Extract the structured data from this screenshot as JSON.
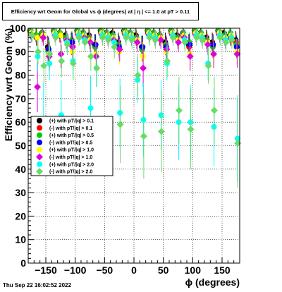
{
  "title": "Efficiency wrt Geom for Global vs ϕ (degrees) at |  η | <= 1.0 at pT > 0.11",
  "timestamp": "Thu Sep 22 16:02:52 2022",
  "chart_data": {
    "type": "scatter",
    "xlabel": "ϕ (degrees)",
    "ylabel": "Efficiency wrt Geom (%)",
    "xlim": [
      -180,
      180
    ],
    "ylim": [
      0,
      100
    ],
    "grid": true,
    "legend_position": "left-middle",
    "x_ticks": [
      -150,
      -100,
      -50,
      0,
      50,
      100,
      150
    ],
    "x_tick_labels": [
      "−150",
      "−100",
      "−50",
      "0",
      "50",
      "100",
      "150"
    ],
    "y_ticks": [
      0,
      10,
      20,
      30,
      40,
      50,
      60,
      70,
      80,
      90,
      100
    ],
    "y_tick_labels": [
      "0",
      "10",
      "20",
      "30",
      "40",
      "50",
      "60",
      "70",
      "80",
      "90",
      "100"
    ],
    "series": [
      {
        "name": "(+) with pT/|q| > 0.1",
        "color": "#000000",
        "marker": "circle",
        "x": [
          -175,
          -165,
          -155,
          -145,
          -135,
          -125,
          -115,
          -105,
          -95,
          -85,
          -75,
          -65,
          -55,
          -45,
          -35,
          -25,
          -15,
          -5,
          5,
          15,
          25,
          35,
          45,
          55,
          65,
          75,
          85,
          95,
          105,
          115,
          125,
          135,
          145,
          155,
          165,
          175
        ],
        "y": [
          99,
          97,
          98,
          92,
          99,
          98,
          97,
          94,
          99,
          98,
          97,
          93,
          99,
          98,
          98,
          94,
          99,
          98,
          97,
          92,
          99,
          98,
          97,
          94,
          99,
          97,
          98,
          93,
          99,
          98,
          96,
          94,
          99,
          98,
          97,
          95
        ]
      },
      {
        "name": "(-) with pT/|q| > 0.1",
        "color": "#ff0000",
        "marker": "circle",
        "x": [
          -175,
          -165,
          -155,
          -145,
          -135,
          -125,
          -115,
          -105,
          -95,
          -85,
          -75,
          -65,
          -55,
          -45,
          -35,
          -25,
          -15,
          -5,
          5,
          15,
          25,
          35,
          45,
          55,
          65,
          75,
          85,
          95,
          105,
          115,
          125,
          135,
          145,
          155,
          165,
          175
        ],
        "y": [
          98,
          96,
          97,
          91,
          99,
          97,
          96,
          93,
          98,
          97,
          96,
          92,
          98,
          97,
          97,
          93,
          98,
          97,
          96,
          91,
          98,
          97,
          96,
          93,
          98,
          96,
          97,
          92,
          98,
          97,
          95,
          93,
          98,
          97,
          96,
          94
        ]
      },
      {
        "name": "(+) with pT/|q| > 0.5",
        "color": "#00cc00",
        "marker": "circle",
        "x": [
          -175,
          -165,
          -155,
          -145,
          -135,
          -125,
          -115,
          -105,
          -95,
          -85,
          -75,
          -65,
          -55,
          -45,
          -35,
          -25,
          -15,
          -5,
          5,
          15,
          25,
          35,
          45,
          55,
          65,
          75,
          85,
          95,
          105,
          115,
          125,
          135,
          145,
          155,
          165,
          175
        ],
        "y": [
          99,
          97,
          98,
          90,
          99,
          98,
          96,
          95,
          99,
          98,
          96,
          92,
          99,
          98,
          97,
          93,
          99,
          98,
          96,
          91,
          99,
          98,
          97,
          93,
          99,
          96,
          98,
          94,
          99,
          98,
          95,
          92,
          99,
          97,
          98,
          93
        ]
      },
      {
        "name": "(-) with pT/|q| > 0.5",
        "color": "#0000ff",
        "marker": "circle",
        "x": [
          -175,
          -165,
          -155,
          -145,
          -135,
          -125,
          -115,
          -105,
          -95,
          -85,
          -75,
          -65,
          -55,
          -45,
          -35,
          -25,
          -15,
          -5,
          5,
          15,
          25,
          35,
          45,
          55,
          65,
          75,
          85,
          95,
          105,
          115,
          125,
          135,
          145,
          155,
          165,
          175
        ],
        "y": [
          98,
          96,
          97,
          91,
          98,
          97,
          95,
          94,
          98,
          97,
          95,
          93,
          98,
          97,
          96,
          92,
          98,
          97,
          95,
          92,
          98,
          97,
          96,
          92,
          98,
          95,
          97,
          93,
          98,
          97,
          94,
          93,
          98,
          96,
          97,
          92
        ]
      },
      {
        "name": "(+) with pT/|q| > 1.0",
        "color": "#ffff00",
        "marker": "circle",
        "x": [
          -175,
          -165,
          -155,
          -145,
          -135,
          -125,
          -115,
          -105,
          -95,
          -85,
          -75,
          -65,
          -55,
          -45,
          -35,
          -25,
          -15,
          -5,
          5,
          15,
          25,
          35,
          45,
          55,
          65,
          75,
          85,
          95,
          105,
          115,
          125,
          135,
          145,
          155,
          165,
          175
        ],
        "y": [
          98,
          96,
          97,
          89,
          98,
          97,
          95,
          90,
          98,
          97,
          95,
          89,
          98,
          97,
          96,
          90,
          98,
          97,
          95,
          88,
          98,
          97,
          96,
          90,
          98,
          95,
          97,
          89,
          98,
          97,
          94,
          89,
          98,
          96,
          97,
          90
        ]
      },
      {
        "name": "(-) with pT/|q| > 1.0",
        "color": "#dd00dd",
        "marker": "circle",
        "x": [
          -175,
          -165,
          -155,
          -145,
          -135,
          -125,
          -115,
          -105,
          -95,
          -85,
          -75,
          -65,
          -55,
          -45,
          -35,
          -25,
          -15,
          -5,
          5,
          15,
          25,
          35,
          45,
          55,
          65,
          75,
          85,
          95,
          105,
          115,
          125,
          135,
          145,
          155,
          165,
          175
        ],
        "y": [
          97,
          75,
          96,
          88,
          97,
          89,
          95,
          92,
          97,
          96,
          94,
          88,
          97,
          96,
          95,
          91,
          97,
          96,
          94,
          83,
          97,
          96,
          95,
          91,
          97,
          94,
          96,
          88,
          97,
          96,
          93,
          89,
          97,
          95,
          96,
          89
        ]
      },
      {
        "name": "(+) with pT/|q| > 2.0",
        "color": "#00ffff",
        "marker": "circle",
        "x": [
          -175,
          -165,
          -155,
          -145,
          -135,
          -125,
          -115,
          -105,
          -95,
          -85,
          -75,
          -65,
          -55,
          -45,
          -35,
          -25,
          -15,
          -5,
          5,
          15,
          25,
          35,
          45,
          55,
          65,
          75,
          85,
          95,
          105,
          115,
          125,
          135,
          145,
          155,
          165,
          175
        ],
        "y": [
          97,
          88,
          61,
          85,
          97,
          63,
          94,
          86,
          97,
          95,
          66,
          83,
          97,
          96,
          94,
          64,
          97,
          96,
          78,
          61,
          97,
          96,
          63,
          85,
          97,
          60,
          95,
          60,
          97,
          96,
          85,
          58,
          97,
          95,
          96,
          53
        ]
      },
      {
        "name": "(-) with pT/|q| > 2.0",
        "color": "#66dd66",
        "marker": "circle",
        "x": [
          -175,
          -165,
          -155,
          -145,
          -135,
          -125,
          -115,
          -105,
          -95,
          -85,
          -75,
          -65,
          -55,
          -45,
          -35,
          -25,
          -15,
          -5,
          5,
          15,
          25,
          35,
          45,
          55,
          65,
          75,
          85,
          95,
          105,
          115,
          125,
          135,
          145,
          155,
          165,
          175
        ],
        "y": [
          97,
          90,
          84,
          89,
          96,
          86,
          93,
          85,
          96,
          94,
          88,
          83,
          96,
          95,
          92,
          59,
          96,
          95,
          80,
          54,
          96,
          95,
          56,
          86,
          96,
          65,
          94,
          57,
          96,
          95,
          84,
          65,
          96,
          94,
          95,
          51
        ]
      }
    ]
  }
}
